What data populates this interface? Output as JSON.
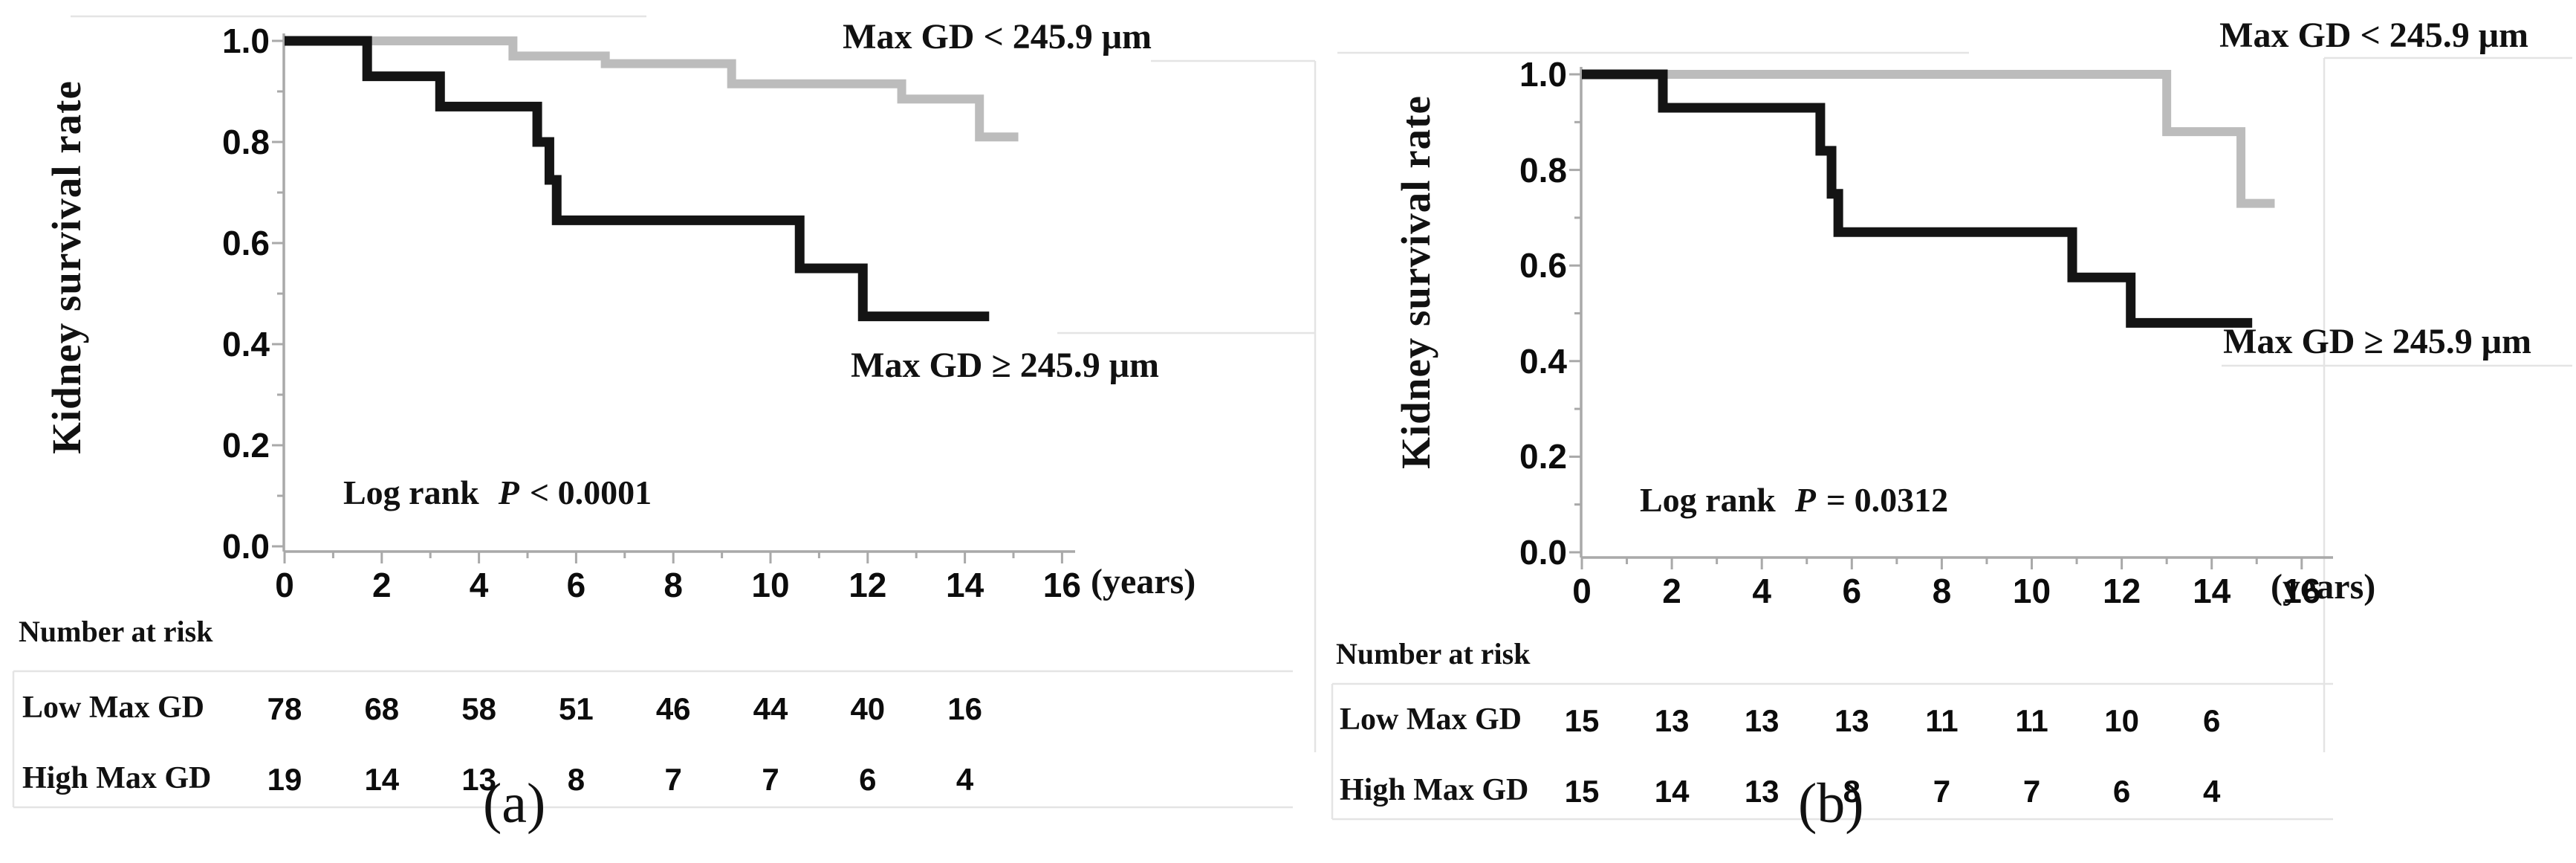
{
  "figure": {
    "panels": [
      {
        "label": "(a)",
        "y_axis_title": "Kidney survival rate",
        "x_axis_unit": "(years)",
        "legend_upper": "Max GD < 245.9 μm",
        "legend_lower": "Max GD ≥ 245.9 μm",
        "logrank_prefix": "Log rank",
        "logrank_stat": "P",
        "logrank_rest": "< 0.0001",
        "risk_header": "Number at risk",
        "risk_rows": [
          {
            "label": "Low Max GD"
          },
          {
            "label": "High Max GD"
          }
        ]
      },
      {
        "label": "(b)",
        "y_axis_title": "Kidney survival rate",
        "x_axis_unit": "(years)",
        "legend_upper": "Max GD < 245.9 μm",
        "legend_lower": "Max GD ≥ 245.9 μm",
        "logrank_prefix": "Log rank",
        "logrank_stat": "P",
        "logrank_rest": "= 0.0312",
        "risk_header": "Number at risk",
        "risk_rows": [
          {
            "label": "Low Max GD"
          },
          {
            "label": "High Max GD"
          }
        ]
      }
    ]
  },
  "chart_data": [
    {
      "type": "line",
      "subtype": "kaplan_meier_step",
      "panel": "(a)",
      "title": "",
      "xlabel": "(years)",
      "ylabel": "Kidney survival rate",
      "xlim": [
        0,
        16.3
      ],
      "ylim": [
        0,
        1.0
      ],
      "x_ticks": [
        0,
        2,
        4,
        6,
        8,
        10,
        12,
        14,
        16
      ],
      "x_minor_tick_step": 1,
      "y_ticks": [
        0.0,
        0.2,
        0.4,
        0.6,
        0.8,
        1.0
      ],
      "y_tick_labels": [
        "0.0",
        "0.2",
        "0.4",
        "0.6",
        "0.8",
        "1.0"
      ],
      "y_minor_tick_step": 0.1,
      "grid": false,
      "legend_position": "inline-labels",
      "annotation": "Log rank P < 0.0001",
      "series": [
        {
          "name": "Max GD < 245.9 μm",
          "group": "Low Max GD",
          "color": "#bcbcbc",
          "line_width": 12,
          "start": [
            0,
            1.0
          ],
          "drops": [
            [
              4.7,
              0.97
            ],
            [
              6.6,
              0.955
            ],
            [
              9.2,
              0.915
            ],
            [
              12.7,
              0.885
            ],
            [
              14.3,
              0.81
            ]
          ],
          "end_x": 15.1
        },
        {
          "name": "Max GD ≥ 245.9 μm",
          "group": "High Max GD",
          "color": "#141414",
          "line_width": 13,
          "start": [
            0,
            1.0
          ],
          "drops": [
            [
              1.7,
              0.93
            ],
            [
              3.2,
              0.87
            ],
            [
              5.2,
              0.8
            ],
            [
              5.45,
              0.725
            ],
            [
              5.6,
              0.645
            ],
            [
              10.6,
              0.55
            ],
            [
              11.9,
              0.455
            ]
          ],
          "end_x": 14.5
        }
      ],
      "number_at_risk": {
        "header": "Number at risk",
        "time_points": [
          0,
          2,
          4,
          6,
          8,
          10,
          12,
          14
        ],
        "rows": [
          {
            "label": "Low Max GD",
            "values": [
              "78",
              "68",
              "58",
              "51",
              "46",
              "44",
              "40",
              "16"
            ]
          },
          {
            "label": "High Max GD",
            "values": [
              "19",
              "14",
              "13",
              "8",
              "7",
              "7",
              "6",
              "4"
            ]
          }
        ]
      }
    },
    {
      "type": "line",
      "subtype": "kaplan_meier_step",
      "panel": "(b)",
      "title": "",
      "xlabel": "(years)",
      "ylabel": "Kidney survival rate",
      "xlim": [
        0,
        16.3
      ],
      "ylim": [
        0,
        1.0
      ],
      "x_ticks": [
        0,
        2,
        4,
        6,
        8,
        10,
        12,
        14,
        16
      ],
      "x_minor_tick_step": 1,
      "y_ticks": [
        0.0,
        0.2,
        0.4,
        0.6,
        0.8,
        1.0
      ],
      "y_tick_labels": [
        "0.0",
        "0.2",
        "0.4",
        "0.6",
        "0.8",
        "1.0"
      ],
      "y_minor_tick_step": 0.1,
      "grid": false,
      "legend_position": "inline-labels",
      "annotation": "Log rank P = 0.0312",
      "series": [
        {
          "name": "Max GD < 245.9 μm",
          "group": "Low Max GD",
          "color": "#bcbcbc",
          "line_width": 12,
          "start": [
            0,
            1.0
          ],
          "drops": [
            [
              13.0,
              0.88
            ],
            [
              14.65,
              0.73
            ]
          ],
          "end_x": 15.4
        },
        {
          "name": "Max GD ≥ 245.9 μm",
          "group": "High Max GD",
          "color": "#141414",
          "line_width": 13,
          "start": [
            0,
            1.0
          ],
          "drops": [
            [
              1.8,
              0.93
            ],
            [
              5.3,
              0.84
            ],
            [
              5.55,
              0.75
            ],
            [
              5.7,
              0.67
            ],
            [
              10.9,
              0.575
            ],
            [
              12.2,
              0.48
            ]
          ],
          "end_x": 14.9
        },
        {
          "name": "",
          "group": "",
          "color": "",
          "line_width": 0,
          "start": [
            0,
            0
          ],
          "drops": [],
          "end_x": 0
        }
      ],
      "number_at_risk": {
        "header": "Number at risk",
        "time_points": [
          0,
          2,
          4,
          6,
          8,
          10,
          12,
          14
        ],
        "rows": [
          {
            "label": "Low Max GD",
            "values": [
              "15",
              "13",
              "13",
              "13",
              "11",
              "11",
              "10",
              "6"
            ]
          },
          {
            "label": "High Max GD",
            "values": [
              "15",
              "14",
              "13",
              "8",
              "7",
              "7",
              "6",
              "4"
            ]
          }
        ]
      }
    }
  ]
}
